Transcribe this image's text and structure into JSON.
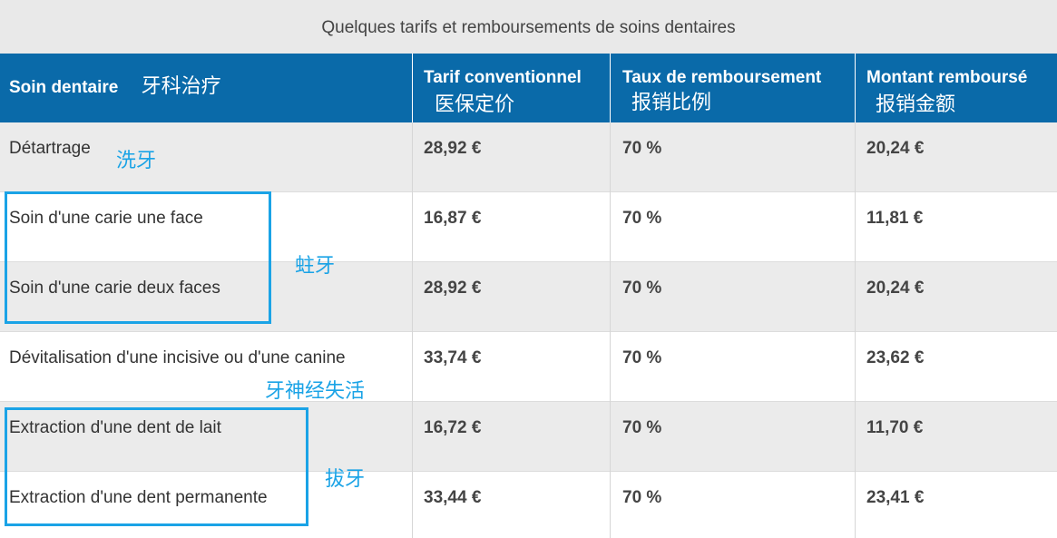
{
  "caption": "Quelques tarifs et remboursements de soins dentaires",
  "headers": {
    "care": {
      "label": "Soin dentaire",
      "zh": "牙科治疗"
    },
    "tariff": {
      "label": "Tarif conventionnel",
      "zh": "医保定价"
    },
    "rate": {
      "label": "Taux de remboursement",
      "zh": "报销比例"
    },
    "amount": {
      "label": "Montant remboursé",
      "zh": "报销金额"
    }
  },
  "rows": [
    {
      "care": "Détartrage",
      "tariff": "28,92 €",
      "rate": "70 %",
      "amount": "20,24 €"
    },
    {
      "care": "Soin d'une carie une face",
      "tariff": "16,87 €",
      "rate": "70 %",
      "amount": "11,81 €"
    },
    {
      "care": "Soin d'une carie deux faces",
      "tariff": "28,92 €",
      "rate": "70 %",
      "amount": "20,24 €"
    },
    {
      "care": "Dévitalisation d'une incisive ou d'une canine",
      "tariff": "33,74 €",
      "rate": "70 %",
      "amount": "23,62 €"
    },
    {
      "care": "Extraction d'une dent de lait",
      "tariff": "16,72 €",
      "rate": "70 %",
      "amount": "11,70 €"
    },
    {
      "care": "Extraction d'une dent permanente",
      "tariff": "33,44 €",
      "rate": "70 %",
      "amount": "23,41 €"
    }
  ],
  "annotations": {
    "scaling": "洗牙",
    "caries": "蛀牙",
    "devitalization": "牙神经失活",
    "extraction": "拔牙"
  },
  "colors": {
    "header_bg": "#0a6aa9",
    "caption_bg": "#e9e9e9",
    "row_alt_bg": "#ebebeb",
    "annotation": "#1aa3e6"
  }
}
